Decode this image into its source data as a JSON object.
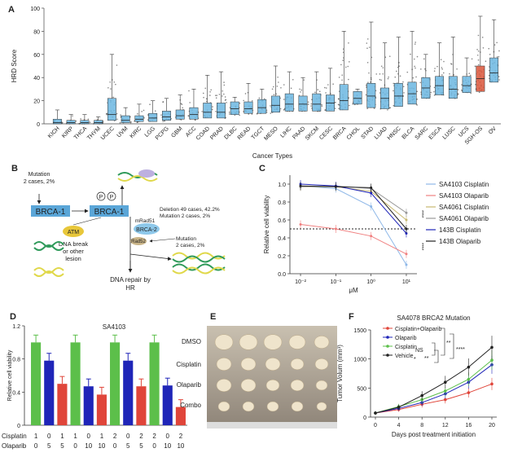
{
  "panel_labels": {
    "a": "A",
    "b": "B",
    "c": "C",
    "d": "D",
    "e": "E",
    "f": "F"
  },
  "colors": {
    "box_blue": "#6bb6e0",
    "box_orange": "#d9553a",
    "green": "#5cbf4a",
    "blue": "#1f25b8",
    "red": "#e0453a",
    "black": "#222222",
    "light_blue": "#8fb8e8",
    "pink": "#f08080",
    "khaki": "#c8b870",
    "gray": "#999999"
  },
  "chart_data": [
    {
      "panel": "A",
      "type": "box",
      "ylabel": "HRD Score",
      "xlabel": "Cancer Types",
      "ylim": [
        0,
        100
      ],
      "yticks": [
        0,
        20,
        40,
        60,
        80,
        100
      ],
      "categories": [
        "KICH",
        "KIRP",
        "THCA",
        "THYM",
        "UCEC",
        "UVM",
        "KIRC",
        "LGG",
        "PCPG",
        "GBM",
        "ACC",
        "COAD",
        "PRAD",
        "DLBC",
        "READ",
        "TGCT",
        "MESO",
        "LIHC",
        "PAAD",
        "SKCM",
        "CESC",
        "BRCA",
        "CHOL",
        "STAD",
        "LUAD",
        "HNSC",
        "BLCA",
        "SARC",
        "ESCA",
        "LUSC",
        "UCS",
        "SGH-OS",
        "OV"
      ],
      "highlight": "SGH-OS",
      "medians": [
        1,
        1,
        1,
        1,
        8,
        3,
        4,
        5,
        6,
        7,
        8,
        10,
        10,
        13,
        13,
        14,
        16,
        17,
        17,
        17,
        18,
        20,
        22,
        24,
        22,
        24,
        26,
        31,
        33,
        30,
        33,
        39,
        44
      ],
      "q1": [
        0,
        0,
        0,
        0,
        3,
        1,
        2,
        2,
        3,
        4,
        4,
        5,
        5,
        8,
        9,
        9,
        10,
        11,
        11,
        11,
        11,
        12,
        17,
        14,
        13,
        15,
        17,
        22,
        25,
        22,
        27,
        28,
        36
      ],
      "q3": [
        4,
        3,
        3,
        3,
        22,
        7,
        7,
        9,
        11,
        12,
        14,
        18,
        18,
        19,
        19,
        21,
        24,
        26,
        24,
        26,
        25,
        34,
        28,
        35,
        31,
        35,
        36,
        40,
        41,
        41,
        41,
        50,
        57
      ],
      "wmax": [
        12,
        8,
        8,
        6,
        60,
        14,
        17,
        20,
        22,
        25,
        30,
        42,
        45,
        23,
        35,
        30,
        50,
        45,
        40,
        45,
        48,
        80,
        30,
        88,
        70,
        75,
        80,
        60,
        70,
        75,
        57,
        93,
        90
      ]
    },
    {
      "panel": "C",
      "type": "line",
      "ylabel": "Relative cell viability",
      "xlabel": "μM",
      "xscale": "log",
      "xlim": [
        0.005,
        20
      ],
      "ylim": [
        0,
        1.1
      ],
      "xtick_labels": [
        "10⁻²",
        "10⁻¹",
        "10⁰",
        "10¹"
      ],
      "ytick_labels": [
        "0.0",
        "0.2",
        "0.4",
        "0.6",
        "0.8",
        "1.0"
      ],
      "yticks": [
        0,
        0.2,
        0.4,
        0.6,
        0.8,
        1.0
      ],
      "reference_line": 0.5,
      "x": [
        0.01,
        0.1,
        1,
        10
      ],
      "series": [
        {
          "name": "SA4103 Cisplatin",
          "values": [
            0.98,
            0.95,
            0.75,
            0.1
          ]
        },
        {
          "name": "SA4103 Olaparib",
          "values": [
            0.55,
            0.5,
            0.42,
            0.22
          ]
        },
        {
          "name": "SA4061 Cisplatin",
          "values": [
            0.97,
            0.97,
            0.92,
            0.6
          ]
        },
        {
          "name": "SA4061 Olaparib",
          "values": [
            0.97,
            0.98,
            0.95,
            0.68
          ]
        },
        {
          "name": "143B Cisplatin",
          "values": [
            1.0,
            0.98,
            0.9,
            0.45
          ]
        },
        {
          "name": "143B Olaparib",
          "values": [
            0.98,
            0.97,
            0.96,
            0.5
          ]
        }
      ],
      "significance": [
        "****",
        "****"
      ]
    },
    {
      "panel": "D",
      "type": "bar",
      "title": "SA4103",
      "ylabel": "Relative cell viability",
      "ylim": [
        0,
        1.2
      ],
      "yticks": [
        0,
        0.4,
        0.8,
        1.2
      ],
      "ytick_labels": [
        "0",
        "0.4",
        "0.8",
        "1.2"
      ],
      "row_labels": [
        "Cisplatin",
        "Olaparib"
      ],
      "cisplatin": [
        "1",
        "0",
        "1",
        "1",
        "0",
        "1",
        "2",
        "0",
        "2",
        "2",
        "0",
        "2"
      ],
      "olaparib": [
        "0",
        "5",
        "5",
        "0",
        "10",
        "10",
        "0",
        "5",
        "5",
        "0",
        "10",
        "10"
      ],
      "values": [
        1.0,
        0.78,
        0.5,
        1.0,
        0.47,
        0.37,
        1.0,
        0.78,
        0.47,
        1.0,
        0.48,
        0.22
      ],
      "bar_colors": [
        "green",
        "blue",
        "red",
        "green",
        "blue",
        "red",
        "green",
        "blue",
        "red",
        "green",
        "blue",
        "red"
      ]
    },
    {
      "panel": "F",
      "type": "line",
      "title": "SA4078 BRCA2 Mutation",
      "ylabel": "Tumor Volum (mm³)",
      "xlabel": "Days post treatment initiation",
      "xlim": [
        0,
        20
      ],
      "ylim": [
        0,
        1500
      ],
      "x": [
        0,
        4,
        8,
        12,
        16,
        20
      ],
      "xticks": [
        0,
        4,
        8,
        12,
        16,
        20
      ],
      "yticks": [
        0,
        500,
        1000,
        1500
      ],
      "series": [
        {
          "name": "Cisplatin+Olaparib",
          "values": [
            70,
            130,
            220,
            300,
            420,
            570
          ]
        },
        {
          "name": "Olaparib",
          "values": [
            70,
            150,
            250,
            400,
            600,
            900
          ]
        },
        {
          "name": "Cisplatin",
          "values": [
            70,
            180,
            300,
            450,
            650,
            980
          ]
        },
        {
          "name": "Vehicle",
          "values": [
            70,
            170,
            370,
            600,
            860,
            1200
          ]
        }
      ],
      "annotations": [
        "NS",
        "**",
        "*",
        "**",
        "****",
        "**"
      ]
    }
  ],
  "panel_b": {
    "mutation_top": "Mutation\n2 cases, 2%",
    "brca1": "BRCA-1",
    "p": "P",
    "atm": "ATM",
    "lesion": "DNA break\nor other\nlesion",
    "deletion_text": "Deletion  49 cases, 42.2%\nMutation  2 cases, 2%",
    "mrad51": "mRad51",
    "brca2": "BRCA-2",
    "rad52": "Rad52",
    "mutation_bottom": "Mutation\n2 cases, 2%",
    "repair": "DNA repair by\nHR"
  },
  "panel_e": {
    "rows": [
      "DMSO",
      "Cisplatin",
      "Olaparib",
      "Combo"
    ]
  }
}
